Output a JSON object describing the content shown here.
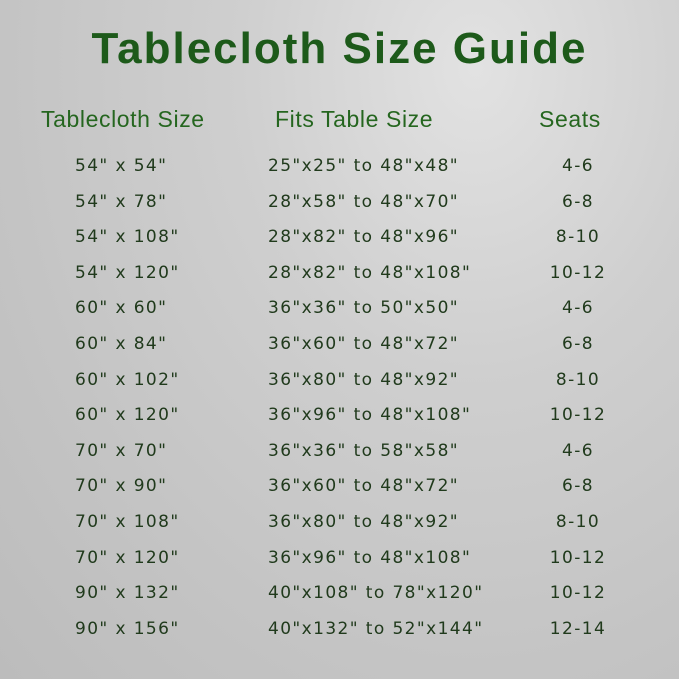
{
  "title": "Tablecloth Size Guide",
  "headers": {
    "tablecloth_size": "Tablecloth Size",
    "fits_table_size": "Fits Table Size",
    "seats": "Seats"
  },
  "rows": [
    {
      "tablecloth_size": "54\" x 54\"",
      "fits_table_size": "25\"x25\" to 48\"x48\"",
      "seats": "4-6"
    },
    {
      "tablecloth_size": "54\" x 78\"",
      "fits_table_size": "28\"x58\" to 48\"x70\"",
      "seats": "6-8"
    },
    {
      "tablecloth_size": "54\" x 108\"",
      "fits_table_size": "28\"x82\" to 48\"x96\"",
      "seats": "8-10"
    },
    {
      "tablecloth_size": "54\" x 120\"",
      "fits_table_size": "28\"x82\" to 48\"x108\"",
      "seats": "10-12"
    },
    {
      "tablecloth_size": "60\" x 60\"",
      "fits_table_size": "36\"x36\" to 50\"x50\"",
      "seats": "4-6"
    },
    {
      "tablecloth_size": "60\" x 84\"",
      "fits_table_size": "36\"x60\" to 48\"x72\"",
      "seats": "6-8"
    },
    {
      "tablecloth_size": "60\" x 102\"",
      "fits_table_size": "36\"x80\" to 48\"x92\"",
      "seats": "8-10"
    },
    {
      "tablecloth_size": "60\" x 120\"",
      "fits_table_size": "36\"x96\" to 48\"x108\"",
      "seats": "10-12"
    },
    {
      "tablecloth_size": "70\" x 70\"",
      "fits_table_size": "36\"x36\" to 58\"x58\"",
      "seats": "4-6"
    },
    {
      "tablecloth_size": "70\" x 90\"",
      "fits_table_size": "36\"x60\" to 48\"x72\"",
      "seats": "6-8"
    },
    {
      "tablecloth_size": "70\" x 108\"",
      "fits_table_size": "36\"x80\" to 48\"x92\"",
      "seats": "8-10"
    },
    {
      "tablecloth_size": "70\" x 120\"",
      "fits_table_size": "36\"x96\" to 48\"x108\"",
      "seats": "10-12"
    },
    {
      "tablecloth_size": "90\" x 132\"",
      "fits_table_size": "40\"x108\" to 78\"x120\"",
      "seats": "10-12"
    },
    {
      "tablecloth_size": "90\" x 156\"",
      "fits_table_size": "40\"x132\" to 52\"x144\"",
      "seats": "12-14"
    }
  ],
  "colors": {
    "title": "#1d5a1a",
    "header": "#25661f",
    "text": "#203a1c"
  }
}
